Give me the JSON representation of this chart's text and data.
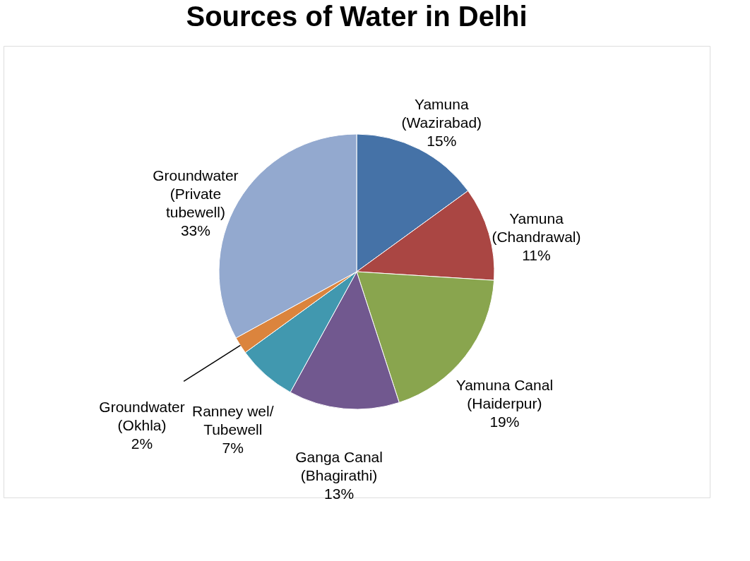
{
  "chart_data": {
    "type": "pie",
    "title": "Sources of Water in Delhi",
    "categories": [
      "Yamuna\n(Wazirabad)",
      "Yamuna\n(Chandrawal)",
      "Yamuna Canal\n(Haiderpur)",
      "Ganga Canal\n(Bhagirathi)",
      "Ranney wel/\nTubewell",
      "Groundwater\n(Okhla)",
      "Groundwater\n(Private\ntubewell)"
    ],
    "values": [
      15,
      11,
      19,
      13,
      7,
      2,
      33
    ],
    "value_labels": [
      "15%",
      "11%",
      "19%",
      "13%",
      "7%",
      "2%",
      "33%"
    ],
    "colors": [
      "#4572a7",
      "#aa4643",
      "#89a54e",
      "#71588f",
      "#4198af",
      "#db843d",
      "#93a9cf"
    ],
    "legend": false
  }
}
